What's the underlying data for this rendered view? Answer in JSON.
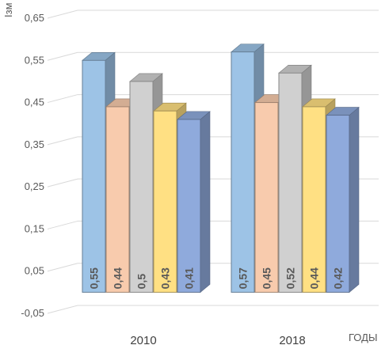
{
  "chart_data": {
    "type": "bar",
    "title": "",
    "ylabel": "Iзм",
    "xlabel": "ГОДЫ",
    "categories": [
      "2010",
      "2018"
    ],
    "series": [
      {
        "values": [
          0.55,
          0.57
        ],
        "color": "#9dc3e6"
      },
      {
        "values": [
          0.44,
          0.45
        ],
        "color": "#f8cbad"
      },
      {
        "values": [
          0.5,
          0.52
        ],
        "color": "#d0d0d0"
      },
      {
        "values": [
          0.43,
          0.44
        ],
        "color": "#ffe083"
      },
      {
        "values": [
          0.41,
          0.42
        ],
        "color": "#8faadc"
      }
    ],
    "ylim": [
      -0.05,
      0.65
    ],
    "yticks": [
      "-0,05",
      "0,05",
      "0,15",
      "0,25",
      "0,35",
      "0,45",
      "0,55",
      "0,65"
    ],
    "data_labels": [
      [
        "0,55",
        "0,44",
        "0,5",
        "0,43",
        "0,41"
      ],
      [
        "0,57",
        "0,45",
        "0,52",
        "0,44",
        "0,42"
      ]
    ],
    "grid": true,
    "legend": "none"
  }
}
